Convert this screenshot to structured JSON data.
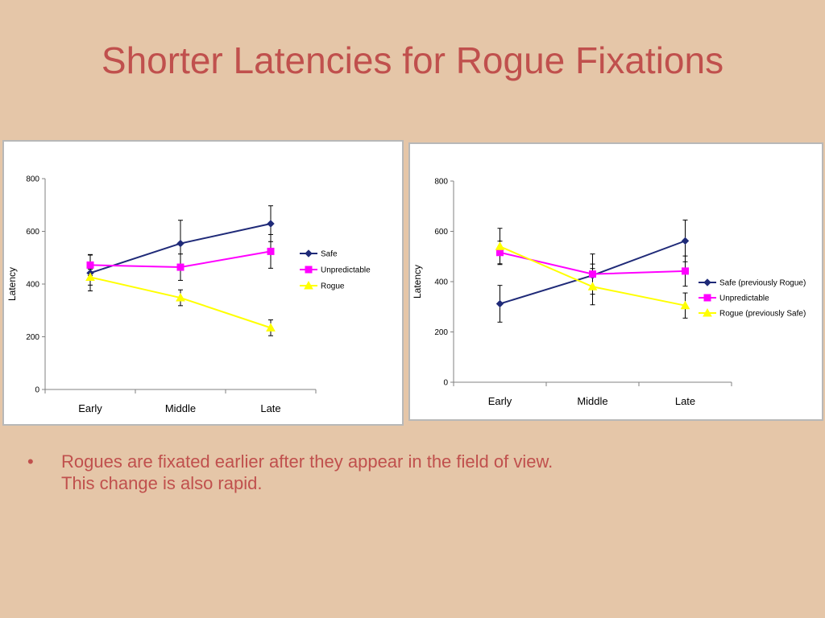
{
  "slide": {
    "title": "Shorter Latencies for Rogue Fixations",
    "bullet": {
      "marker": "•",
      "lines": [
        "Rogues are fixated earlier after they appear in the field of view.",
        "This change is also rapid."
      ]
    }
  },
  "colors": {
    "background": "#E5C6A8",
    "title": "#C0504D",
    "safe": "#1F2A78",
    "unpredictable": "#FF00FF",
    "rogue": "#FFFF00"
  },
  "chart_data": [
    {
      "type": "line",
      "categories": [
        "Early",
        "Middle",
        "Late"
      ],
      "ylabel": "Latency",
      "xlabel": "",
      "ylim": [
        0,
        800
      ],
      "yticks": [
        0,
        200,
        400,
        600,
        800
      ],
      "grid": false,
      "legend_position": "right",
      "series": [
        {
          "name": "Safe",
          "marker": "diamond",
          "color": "#1F2A78",
          "values": [
            442,
            554,
            629
          ],
          "error": [
            68,
            88,
            68
          ]
        },
        {
          "name": "Unpredictable",
          "marker": "square",
          "color": "#FF00FF",
          "values": [
            472,
            464,
            524
          ],
          "error": [
            40,
            50,
            64
          ]
        },
        {
          "name": "Rogue",
          "marker": "triangle",
          "color": "#FFFF00",
          "values": [
            426,
            348,
            234
          ],
          "error": [
            30,
            30,
            30
          ]
        }
      ]
    },
    {
      "type": "line",
      "categories": [
        "Early",
        "Middle",
        "Late"
      ],
      "ylabel": "Latency",
      "xlabel": "",
      "ylim": [
        0,
        800
      ],
      "yticks": [
        0,
        200,
        400,
        600,
        800
      ],
      "grid": false,
      "legend_position": "right",
      "series": [
        {
          "name": "Safe (previously Rogue)",
          "marker": "diamond",
          "color": "#1F2A78",
          "values": [
            312,
            425,
            562
          ],
          "error": [
            73,
            45,
            83
          ]
        },
        {
          "name": "Unpredictable",
          "marker": "square",
          "color": "#FF00FF",
          "values": [
            516,
            430,
            442
          ],
          "error": [
            45,
            80,
            60
          ]
        },
        {
          "name": "Rogue (previously Safe)",
          "marker": "triangle",
          "color": "#FFFF00",
          "values": [
            540,
            380,
            305
          ],
          "error": [
            72,
            72,
            50
          ]
        }
      ]
    }
  ]
}
